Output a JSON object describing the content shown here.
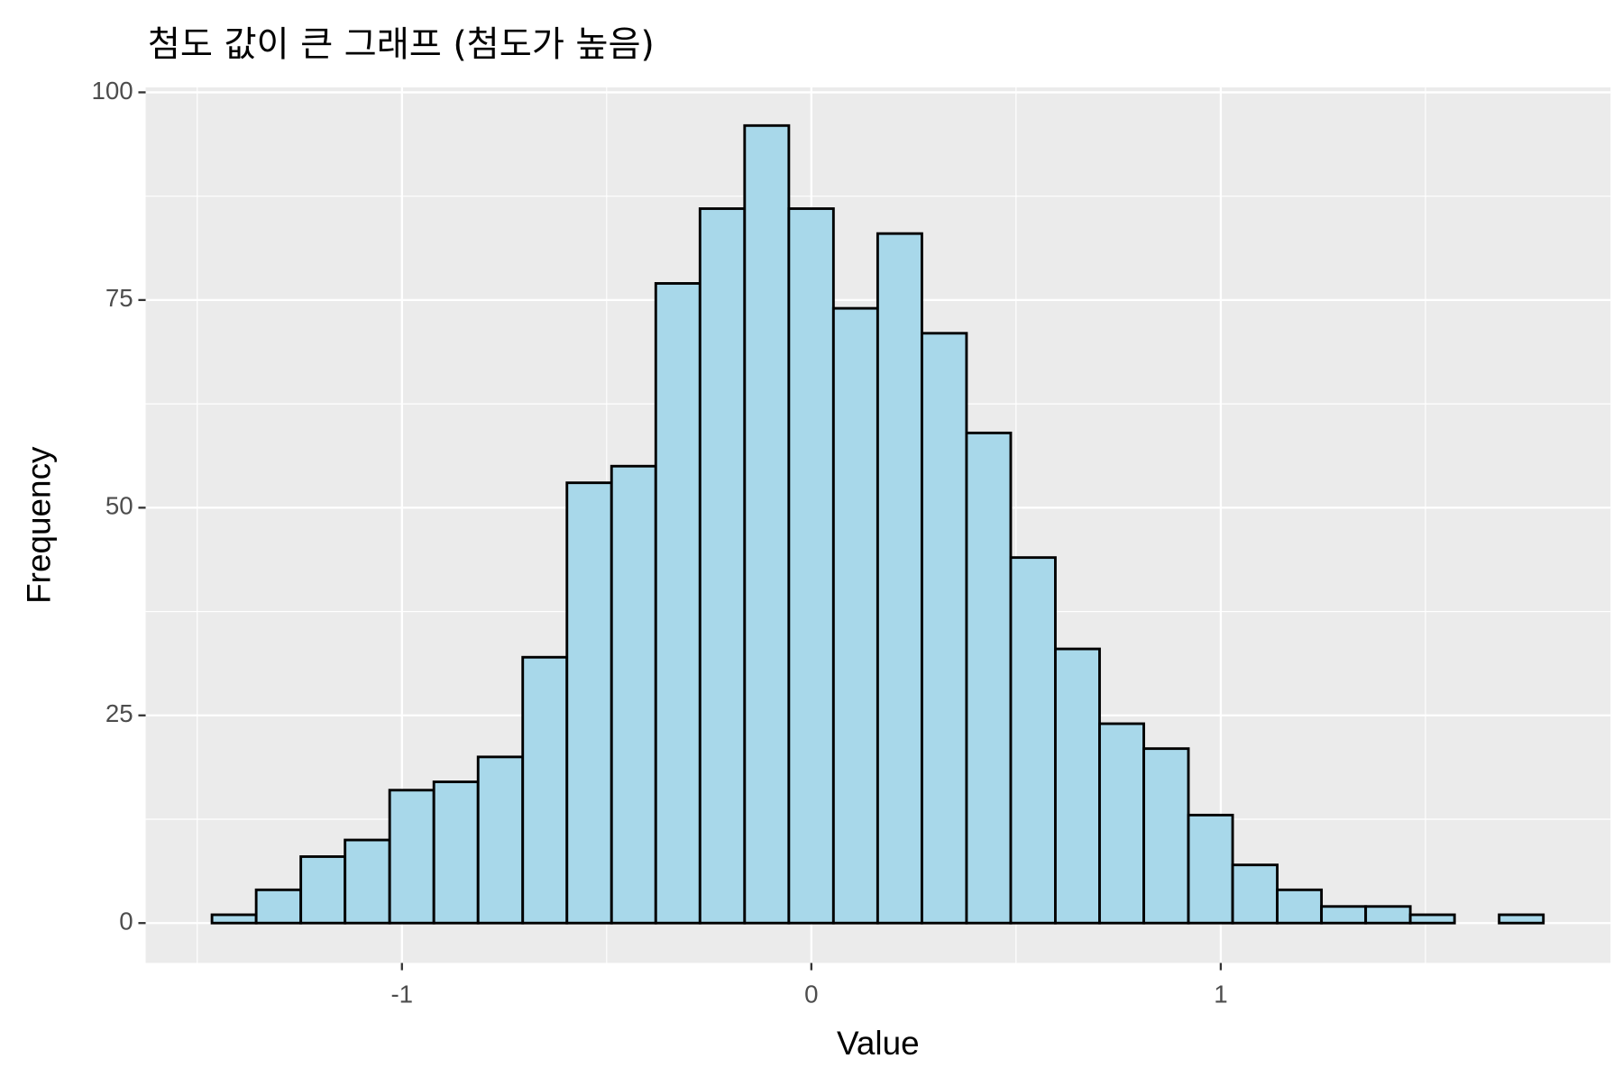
{
  "chart_data": {
    "type": "histogram",
    "title": "첨도 값이 큰 그래프 (첨도가 높음)",
    "x_label": "Value",
    "y_label": "Frequency",
    "bins": [
      -1.464,
      -1.356,
      -1.247,
      -1.139,
      -1.03,
      -0.922,
      -0.814,
      -0.705,
      -0.597,
      -0.488,
      -0.38,
      -0.272,
      -0.163,
      -0.055,
      0.054,
      0.162,
      0.27,
      0.379,
      0.487,
      0.596,
      0.704,
      0.812,
      0.921,
      1.029,
      1.138,
      1.246,
      1.354,
      1.463,
      1.571,
      1.68,
      1.788
    ],
    "values": [
      1,
      4,
      8,
      10,
      16,
      17,
      20,
      32,
      53,
      55,
      77,
      86,
      96,
      86,
      74,
      83,
      71,
      59,
      44,
      33,
      24,
      21,
      13,
      7,
      4,
      2,
      2,
      1,
      0,
      1
    ],
    "color": "#a8d8ea",
    "edgecolor": "#000000",
    "xlim": [
      -1.626,
      1.952
    ],
    "xticks": [
      -1,
      0,
      1
    ],
    "xminor": [
      -1.5,
      -0.5,
      0.5,
      1.5
    ],
    "ylim": [
      -4.8,
      100.6
    ],
    "yticks": [
      0,
      25,
      50,
      75,
      100
    ],
    "yminor": [
      12.5,
      37.5,
      62.5,
      87.5
    ],
    "grid": true
  }
}
